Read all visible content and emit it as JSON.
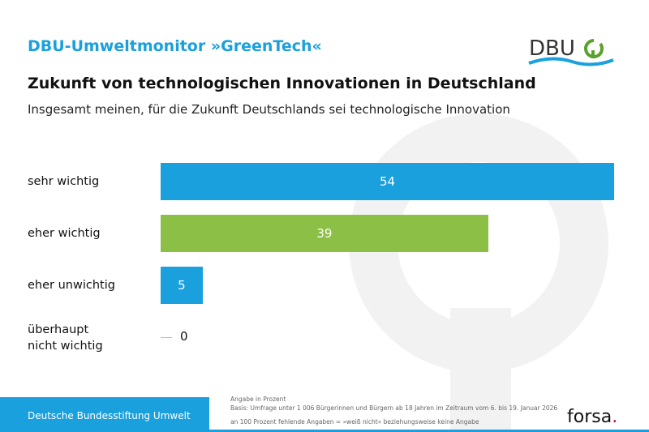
{
  "header": {
    "kicker": "DBU-Umweltmonitor »GreenTech«",
    "title": "Zukunft von technologischen Innovationen in Deutschland",
    "subtitle": "Insgesamt meinen, für die Zukunft Deutschlands sei technologische Innovation",
    "logo_text": "DBU"
  },
  "chart_data": {
    "type": "bar",
    "orientation": "horizontal",
    "categories": [
      "sehr wichtig",
      "eher wichtig",
      "eher unwichtig",
      "überhaupt nicht wichtig"
    ],
    "values": [
      54,
      39,
      5,
      0
    ],
    "value_labels": [
      "54",
      "39",
      "5",
      "0"
    ],
    "colors": [
      "#1aa0dc",
      "#8cbf45",
      "#1aa0dc",
      "#1aa0dc"
    ],
    "unit": "Prozent"
  },
  "footer": {
    "org": "Deutsche Bundesstiftung Umwelt",
    "note1": "Angabe in Prozent",
    "note2": "Basis: Umfrage unter 1 006 Bürgerinnen und Bürgern ab 18 Jahren im Zeitraum vom 6. bis 19. Januar 2026",
    "note3": "an 100 Prozent fehlende Angaben = »weiß nicht« beziehungsweise keine Angabe",
    "source_logo": "forsa"
  }
}
